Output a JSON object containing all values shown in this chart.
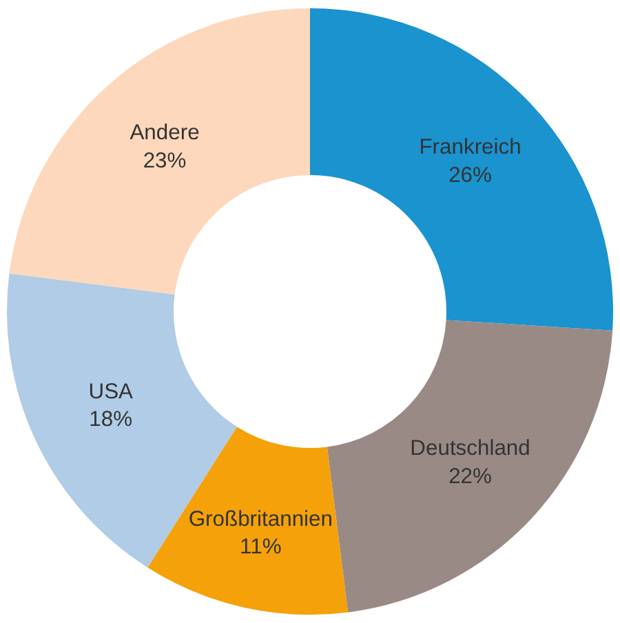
{
  "chart_data": {
    "type": "donut",
    "categories": [
      "Frankreich",
      "Deutschland",
      "Großbritannien",
      "USA",
      "Andere"
    ],
    "values": [
      26,
      22,
      11,
      18,
      23
    ],
    "value_labels": [
      "26%",
      "22%",
      "11%",
      "18%",
      "23%"
    ],
    "colors": [
      "#1a93cf",
      "#9a8a85",
      "#f5a10a",
      "#b0cce6",
      "#fdd8bc"
    ],
    "legend": false
  }
}
